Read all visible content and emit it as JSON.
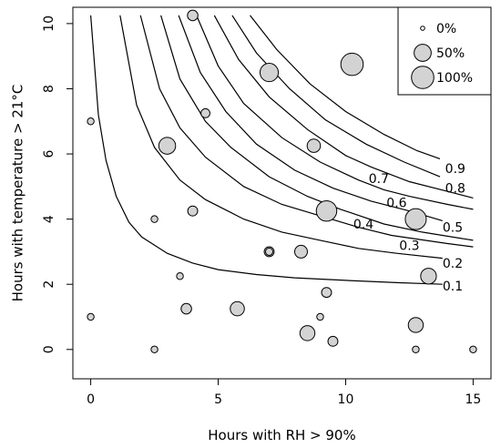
{
  "chart_data": {
    "type": "scatter",
    "xlabel": "Hours with RH > 90%",
    "ylabel": "Hours with temperature > 21°C",
    "xlim": [
      -0.7,
      15.7
    ],
    "ylim": [
      -0.9,
      10.5
    ],
    "x_ticks": [
      0,
      5,
      10,
      15
    ],
    "y_ticks": [
      0,
      2,
      4,
      6,
      8,
      10
    ],
    "legend": {
      "position": "top-right",
      "entries": [
        {
          "label": "0%",
          "value": 0.0
        },
        {
          "label": "50%",
          "value": 0.5
        },
        {
          "label": "100%",
          "value": 1.0
        }
      ]
    },
    "bubble_fill": "#d3d3d3",
    "bubble_stroke": "#000000",
    "points": [
      {
        "x": 0.0,
        "y": 7.0,
        "v": 0.02
      },
      {
        "x": 0.0,
        "y": 1.0,
        "v": 0.02
      },
      {
        "x": 2.5,
        "y": 4.0,
        "v": 0.02
      },
      {
        "x": 2.5,
        "y": 0.0,
        "v": 0.02
      },
      {
        "x": 3.0,
        "y": 6.25,
        "v": 0.48
      },
      {
        "x": 3.5,
        "y": 2.25,
        "v": 0.02
      },
      {
        "x": 3.75,
        "y": 1.25,
        "v": 0.12
      },
      {
        "x": 4.0,
        "y": 4.25,
        "v": 0.1
      },
      {
        "x": 4.0,
        "y": 10.25,
        "v": 0.12
      },
      {
        "x": 4.5,
        "y": 7.25,
        "v": 0.07
      },
      {
        "x": 5.75,
        "y": 1.25,
        "v": 0.3
      },
      {
        "x": 7.0,
        "y": 3.0,
        "v": 0.1
      },
      {
        "x": 7.0,
        "y": 3.0,
        "v": 0.03
      },
      {
        "x": 7.0,
        "y": 8.5,
        "v": 0.6
      },
      {
        "x": 8.25,
        "y": 3.0,
        "v": 0.22
      },
      {
        "x": 8.5,
        "y": 0.5,
        "v": 0.35
      },
      {
        "x": 8.75,
        "y": 6.25,
        "v": 0.25
      },
      {
        "x": 9.0,
        "y": 1.0,
        "v": 0.02
      },
      {
        "x": 9.25,
        "y": 4.25,
        "v": 0.8
      },
      {
        "x": 9.25,
        "y": 1.75,
        "v": 0.1
      },
      {
        "x": 9.5,
        "y": 0.25,
        "v": 0.1
      },
      {
        "x": 10.25,
        "y": 8.75,
        "v": 1.0
      },
      {
        "x": 12.75,
        "y": 0.75,
        "v": 0.35
      },
      {
        "x": 12.75,
        "y": 4.0,
        "v": 0.85
      },
      {
        "x": 12.75,
        "y": 0.0,
        "v": 0.02
      },
      {
        "x": 13.25,
        "y": 2.25,
        "v": 0.4
      },
      {
        "x": 15.0,
        "y": 0.0,
        "v": 0.02
      }
    ],
    "contours": [
      {
        "label": "0.1",
        "label_x": 14.2,
        "label_y": 1.95,
        "points": [
          [
            0.0,
            10.25
          ],
          [
            0.3,
            7.2
          ],
          [
            0.6,
            5.8
          ],
          [
            1.0,
            4.7
          ],
          [
            1.5,
            3.9
          ],
          [
            2.0,
            3.45
          ],
          [
            3.0,
            2.95
          ],
          [
            4.0,
            2.65
          ],
          [
            5.0,
            2.45
          ],
          [
            6.5,
            2.3
          ],
          [
            8.0,
            2.2
          ],
          [
            10.0,
            2.12
          ],
          [
            12.0,
            2.05
          ],
          [
            13.8,
            2.0
          ]
        ]
      },
      {
        "label": "0.2",
        "label_x": 14.2,
        "label_y": 2.65,
        "points": [
          [
            1.15,
            10.25
          ],
          [
            1.8,
            7.5
          ],
          [
            2.5,
            6.2
          ],
          [
            3.5,
            5.2
          ],
          [
            4.5,
            4.6
          ],
          [
            6.0,
            4.0
          ],
          [
            7.5,
            3.6
          ],
          [
            9.0,
            3.35
          ],
          [
            10.5,
            3.1
          ],
          [
            12.0,
            2.95
          ],
          [
            13.8,
            2.8
          ]
        ]
      },
      {
        "label": "0.3",
        "label_x": 12.5,
        "label_y": 3.2,
        "points": [
          [
            1.95,
            10.25
          ],
          [
            2.7,
            8.0
          ],
          [
            3.5,
            6.8
          ],
          [
            4.5,
            5.9
          ],
          [
            6.0,
            5.0
          ],
          [
            7.5,
            4.45
          ],
          [
            9.0,
            4.1
          ],
          [
            10.5,
            3.75
          ],
          [
            11.8,
            3.5
          ],
          [
            14.0,
            3.25
          ],
          [
            15.0,
            3.15
          ]
        ]
      },
      {
        "label": "0.4",
        "label_x": 10.7,
        "label_y": 3.85,
        "points": [
          [
            2.75,
            10.25
          ],
          [
            3.5,
            8.3
          ],
          [
            4.5,
            7.0
          ],
          [
            5.5,
            6.2
          ],
          [
            7.0,
            5.3
          ],
          [
            8.5,
            4.7
          ],
          [
            9.8,
            4.3
          ],
          [
            11.5,
            3.85
          ],
          [
            13.0,
            3.6
          ],
          [
            15.0,
            3.35
          ]
        ]
      },
      {
        "label": "0.5",
        "label_x": 14.2,
        "label_y": 3.75,
        "points": [
          [
            3.45,
            10.25
          ],
          [
            4.3,
            8.5
          ],
          [
            5.3,
            7.3
          ],
          [
            6.5,
            6.3
          ],
          [
            8.0,
            5.5
          ],
          [
            9.5,
            4.95
          ],
          [
            11.0,
            4.55
          ],
          [
            12.5,
            4.25
          ],
          [
            13.8,
            3.95
          ]
        ]
      },
      {
        "label": "0.6",
        "label_x": 12.0,
        "label_y": 4.5,
        "points": [
          [
            4.15,
            10.25
          ],
          [
            5.0,
            8.7
          ],
          [
            6.0,
            7.55
          ],
          [
            7.5,
            6.5
          ],
          [
            9.0,
            5.75
          ],
          [
            10.5,
            5.2
          ],
          [
            11.5,
            4.9
          ],
          [
            12.5,
            4.7
          ],
          [
            14.0,
            4.45
          ],
          [
            15.0,
            4.3
          ]
        ]
      },
      {
        "label": "0.7",
        "label_x": 11.3,
        "label_y": 5.25,
        "points": [
          [
            4.85,
            10.25
          ],
          [
            5.8,
            8.9
          ],
          [
            7.0,
            7.75
          ],
          [
            8.5,
            6.75
          ],
          [
            10.0,
            5.95
          ],
          [
            11.0,
            5.6
          ],
          [
            12.5,
            5.15
          ],
          [
            14.0,
            4.85
          ],
          [
            15.0,
            4.65
          ]
        ]
      },
      {
        "label": "0.8",
        "label_x": 14.3,
        "label_y": 4.95,
        "points": [
          [
            5.55,
            10.25
          ],
          [
            6.5,
            9.1
          ],
          [
            7.8,
            8.0
          ],
          [
            9.2,
            7.05
          ],
          [
            10.8,
            6.3
          ],
          [
            12.3,
            5.75
          ],
          [
            13.7,
            5.3
          ]
        ]
      },
      {
        "label": "0.9",
        "label_x": 14.3,
        "label_y": 5.55,
        "points": [
          [
            6.25,
            10.25
          ],
          [
            7.3,
            9.2
          ],
          [
            8.6,
            8.15
          ],
          [
            10.0,
            7.3
          ],
          [
            11.5,
            6.6
          ],
          [
            12.8,
            6.1
          ],
          [
            13.7,
            5.85
          ]
        ]
      }
    ]
  }
}
